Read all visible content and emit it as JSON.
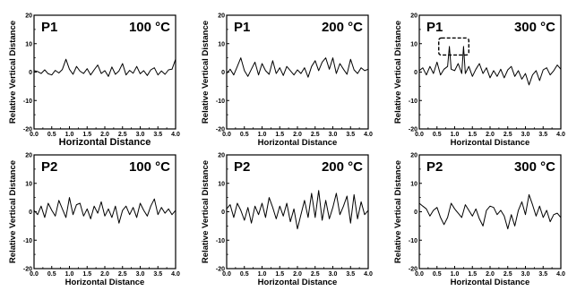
{
  "chart_data": [
    {
      "type": "line",
      "panel_label": "P1",
      "temperature": "100 °C",
      "xlabel": "Horizontal Distance",
      "ylabel": "Relative Vertical Distance",
      "xlim": [
        0.0,
        4.0
      ],
      "ylim": [
        -20,
        20
      ],
      "xticks": [
        "0.0",
        "0.5",
        "1.0",
        "1.5",
        "2.0",
        "2.5",
        "3.0",
        "3.5",
        "4.0"
      ],
      "yticks": [
        "-20",
        "-10",
        "0",
        "10",
        "20"
      ],
      "series": [
        {
          "x": [
            0.0,
            0.1,
            0.2,
            0.3,
            0.4,
            0.5,
            0.6,
            0.7,
            0.8,
            0.9,
            1.0,
            1.1,
            1.2,
            1.3,
            1.4,
            1.5,
            1.6,
            1.7,
            1.8,
            1.9,
            2.0,
            2.1,
            2.2,
            2.3,
            2.4,
            2.5,
            2.6,
            2.7,
            2.8,
            2.9,
            3.0,
            3.1,
            3.2,
            3.3,
            3.4,
            3.5,
            3.6,
            3.7,
            3.8,
            3.9,
            4.0
          ],
          "y": [
            0.5,
            0.2,
            -0.5,
            0.8,
            -0.6,
            -1.0,
            0.6,
            -0.3,
            0.9,
            4.5,
            1.0,
            -0.8,
            2.0,
            0.3,
            -0.5,
            1.2,
            -1.0,
            0.8,
            2.5,
            -0.5,
            0.5,
            -1.5,
            1.8,
            -0.8,
            0.4,
            3.0,
            -1.0,
            0.6,
            -0.4,
            2.0,
            -0.6,
            0.5,
            -1.2,
            0.8,
            1.5,
            -1.0,
            0.4,
            -0.8,
            0.8,
            1.0,
            4.5
          ]
        }
      ]
    },
    {
      "type": "line",
      "panel_label": "P1",
      "temperature": "200 °C",
      "xlabel": "Horizontal Distance",
      "ylabel": "Relative Vertical Distance",
      "xlim": [
        0.0,
        4.0
      ],
      "ylim": [
        -20,
        20
      ],
      "xticks": [
        "0.0",
        "0.5",
        "1.0",
        "1.5",
        "2.0",
        "2.5",
        "3.0",
        "3.5",
        "4.0"
      ],
      "yticks": [
        "-20",
        "-10",
        "0",
        "10",
        "20"
      ],
      "series": [
        {
          "x": [
            0.0,
            0.1,
            0.2,
            0.3,
            0.4,
            0.5,
            0.6,
            0.7,
            0.8,
            0.9,
            1.0,
            1.1,
            1.2,
            1.3,
            1.4,
            1.5,
            1.6,
            1.7,
            1.8,
            1.9,
            2.0,
            2.1,
            2.2,
            2.3,
            2.4,
            2.5,
            2.6,
            2.7,
            2.8,
            2.9,
            3.0,
            3.1,
            3.2,
            3.3,
            3.4,
            3.5,
            3.6,
            3.7,
            3.8,
            3.9,
            4.0
          ],
          "y": [
            -0.5,
            1.0,
            -1.0,
            2.0,
            5.0,
            0.5,
            -1.5,
            1.0,
            3.5,
            -1.0,
            3.0,
            0.5,
            -0.8,
            4.0,
            -0.5,
            1.5,
            -1.2,
            2.0,
            0.5,
            -1.0,
            0.8,
            -0.5,
            1.5,
            -1.8,
            2.0,
            4.0,
            0.5,
            3.5,
            5.0,
            1.0,
            5.0,
            -0.5,
            3.0,
            1.0,
            -0.8,
            4.5,
            0.8,
            -0.5,
            1.5,
            0.5,
            1.0
          ]
        }
      ]
    },
    {
      "type": "line",
      "panel_label": "P1",
      "temperature": "300 °C",
      "xlabel": "Horizontal Distance",
      "ylabel": "Relative Vertical Distance",
      "xlim": [
        0.0,
        4.0
      ],
      "ylim": [
        -20,
        20
      ],
      "xticks": [
        "0.0",
        "0.5",
        "1.0",
        "1.5",
        "2.0",
        "2.5",
        "3.0",
        "3.5",
        "4.0"
      ],
      "yticks": [
        "-20",
        "-10",
        "0",
        "10",
        "20"
      ],
      "series": [
        {
          "x": [
            0.0,
            0.1,
            0.2,
            0.3,
            0.4,
            0.5,
            0.6,
            0.7,
            0.8,
            0.85,
            0.9,
            1.0,
            1.1,
            1.2,
            1.25,
            1.3,
            1.4,
            1.5,
            1.6,
            1.7,
            1.8,
            1.9,
            2.0,
            2.1,
            2.2,
            2.3,
            2.4,
            2.5,
            2.6,
            2.7,
            2.8,
            2.9,
            3.0,
            3.1,
            3.2,
            3.3,
            3.4,
            3.5,
            3.6,
            3.7,
            3.8,
            3.9,
            4.0
          ],
          "y": [
            0.5,
            1.5,
            -1.0,
            2.0,
            -0.5,
            3.5,
            -1.0,
            1.0,
            2.0,
            9.0,
            1.0,
            0.5,
            3.0,
            -0.5,
            9.0,
            -0.5,
            2.0,
            -1.5,
            1.0,
            3.0,
            -0.5,
            1.5,
            -2.0,
            0.5,
            -1.5,
            1.0,
            -2.0,
            0.8,
            2.0,
            -1.5,
            0.5,
            -2.5,
            -0.5,
            -4.5,
            -1.0,
            0.5,
            -3.0,
            0.8,
            1.5,
            -1.0,
            0.5,
            2.5,
            1.0
          ]
        }
      ],
      "annotation": {
        "type": "dashed-box",
        "x_range": [
          0.55,
          1.4
        ],
        "y_range": [
          6,
          12
        ]
      }
    },
    {
      "type": "line",
      "panel_label": "P2",
      "temperature": "100 °C",
      "xlabel": "Horizontal Distance",
      "ylabel": "Relative Vertical Distance",
      "xlim": [
        0.0,
        4.0
      ],
      "ylim": [
        -20,
        20
      ],
      "xticks": [
        "0.0",
        "0.5",
        "1.0",
        "1.5",
        "2.0",
        "2.5",
        "3.0",
        "3.5",
        "4.0"
      ],
      "yticks": [
        "-20",
        "-10",
        "0",
        "10",
        "20"
      ],
      "series": [
        {
          "x": [
            0.0,
            0.1,
            0.2,
            0.3,
            0.4,
            0.5,
            0.6,
            0.7,
            0.8,
            0.9,
            1.0,
            1.1,
            1.2,
            1.3,
            1.4,
            1.5,
            1.6,
            1.7,
            1.8,
            1.9,
            2.0,
            2.1,
            2.2,
            2.3,
            2.4,
            2.5,
            2.6,
            2.7,
            2.8,
            2.9,
            3.0,
            3.1,
            3.2,
            3.3,
            3.4,
            3.5,
            3.6,
            3.7,
            3.8,
            3.9,
            4.0
          ],
          "y": [
            0.5,
            -1.0,
            2.0,
            -2.0,
            3.0,
            0.5,
            -1.5,
            4.0,
            1.0,
            -2.0,
            5.0,
            -1.0,
            2.5,
            3.0,
            -1.5,
            1.0,
            -2.5,
            2.0,
            -0.5,
            3.5,
            -1.5,
            1.0,
            -2.0,
            2.0,
            -4.0,
            0.5,
            2.0,
            -1.0,
            1.5,
            -2.0,
            3.0,
            0.5,
            -1.5,
            2.0,
            4.5,
            -1.0,
            1.5,
            -0.5,
            1.0,
            -1.0,
            0.5
          ]
        }
      ]
    },
    {
      "type": "line",
      "panel_label": "P2",
      "temperature": "200 °C",
      "xlabel": "Horizontal Distance",
      "ylabel": "Relative Vertical Distance",
      "xlim": [
        0.0,
        4.0
      ],
      "ylim": [
        -20,
        20
      ],
      "xticks": [
        "0.0",
        "0.5",
        "1.0",
        "1.5",
        "2.0",
        "2.5",
        "3.0",
        "3.5",
        "4.0"
      ],
      "yticks": [
        "-20",
        "-10",
        "0",
        "10",
        "20"
      ],
      "series": [
        {
          "x": [
            0.0,
            0.1,
            0.2,
            0.3,
            0.4,
            0.5,
            0.6,
            0.7,
            0.8,
            0.9,
            1.0,
            1.1,
            1.2,
            1.3,
            1.4,
            1.5,
            1.6,
            1.7,
            1.8,
            1.9,
            2.0,
            2.1,
            2.2,
            2.3,
            2.4,
            2.5,
            2.6,
            2.7,
            2.8,
            2.9,
            3.0,
            3.1,
            3.2,
            3.3,
            3.4,
            3.5,
            3.6,
            3.7,
            3.8,
            3.9,
            4.0
          ],
          "y": [
            1.0,
            2.5,
            -2.0,
            3.0,
            0.5,
            -3.0,
            1.5,
            -4.0,
            2.0,
            -1.0,
            3.0,
            -2.0,
            5.0,
            1.5,
            -2.5,
            2.0,
            -1.5,
            3.0,
            -3.5,
            1.0,
            -6.0,
            -1.0,
            4.0,
            -2.0,
            6.5,
            -2.0,
            7.5,
            -3.0,
            4.0,
            -2.5,
            1.5,
            6.5,
            -1.0,
            2.0,
            5.5,
            -4.0,
            6.0,
            -2.5,
            3.5,
            -1.0,
            0.5
          ]
        }
      ]
    },
    {
      "type": "line",
      "panel_label": "P2",
      "temperature": "300 °C",
      "xlabel": "Horizontal Distance",
      "ylabel": "Relative Vertical Distance",
      "xlim": [
        0.0,
        4.0
      ],
      "ylim": [
        -20,
        20
      ],
      "xticks": [
        "0.0",
        "0.5",
        "1.0",
        "1.5",
        "2.0",
        "2.5",
        "3.0",
        "3.5",
        "4.0"
      ],
      "yticks": [
        "-20",
        "-10",
        "0",
        "10",
        "20"
      ],
      "series": [
        {
          "x": [
            0.0,
            0.1,
            0.2,
            0.3,
            0.4,
            0.5,
            0.6,
            0.7,
            0.8,
            0.9,
            1.0,
            1.1,
            1.2,
            1.3,
            1.4,
            1.5,
            1.6,
            1.7,
            1.8,
            1.9,
            2.0,
            2.1,
            2.2,
            2.3,
            2.4,
            2.5,
            2.6,
            2.7,
            2.8,
            2.9,
            3.0,
            3.1,
            3.2,
            3.3,
            3.4,
            3.5,
            3.6,
            3.7,
            3.8,
            3.9,
            4.0
          ],
          "y": [
            3.0,
            2.0,
            1.0,
            -1.5,
            0.5,
            1.5,
            -2.0,
            -4.5,
            -2.0,
            3.0,
            1.0,
            -0.5,
            -2.0,
            2.5,
            0.5,
            -1.5,
            1.0,
            -2.5,
            -5.0,
            0.5,
            2.0,
            1.5,
            -1.0,
            0.5,
            -1.5,
            -6.0,
            -1.0,
            -5.0,
            0.5,
            3.5,
            -1.0,
            6.0,
            2.5,
            -1.5,
            2.0,
            -2.0,
            0.5,
            -3.5,
            -1.0,
            -0.5,
            -2.0
          ]
        }
      ]
    }
  ]
}
